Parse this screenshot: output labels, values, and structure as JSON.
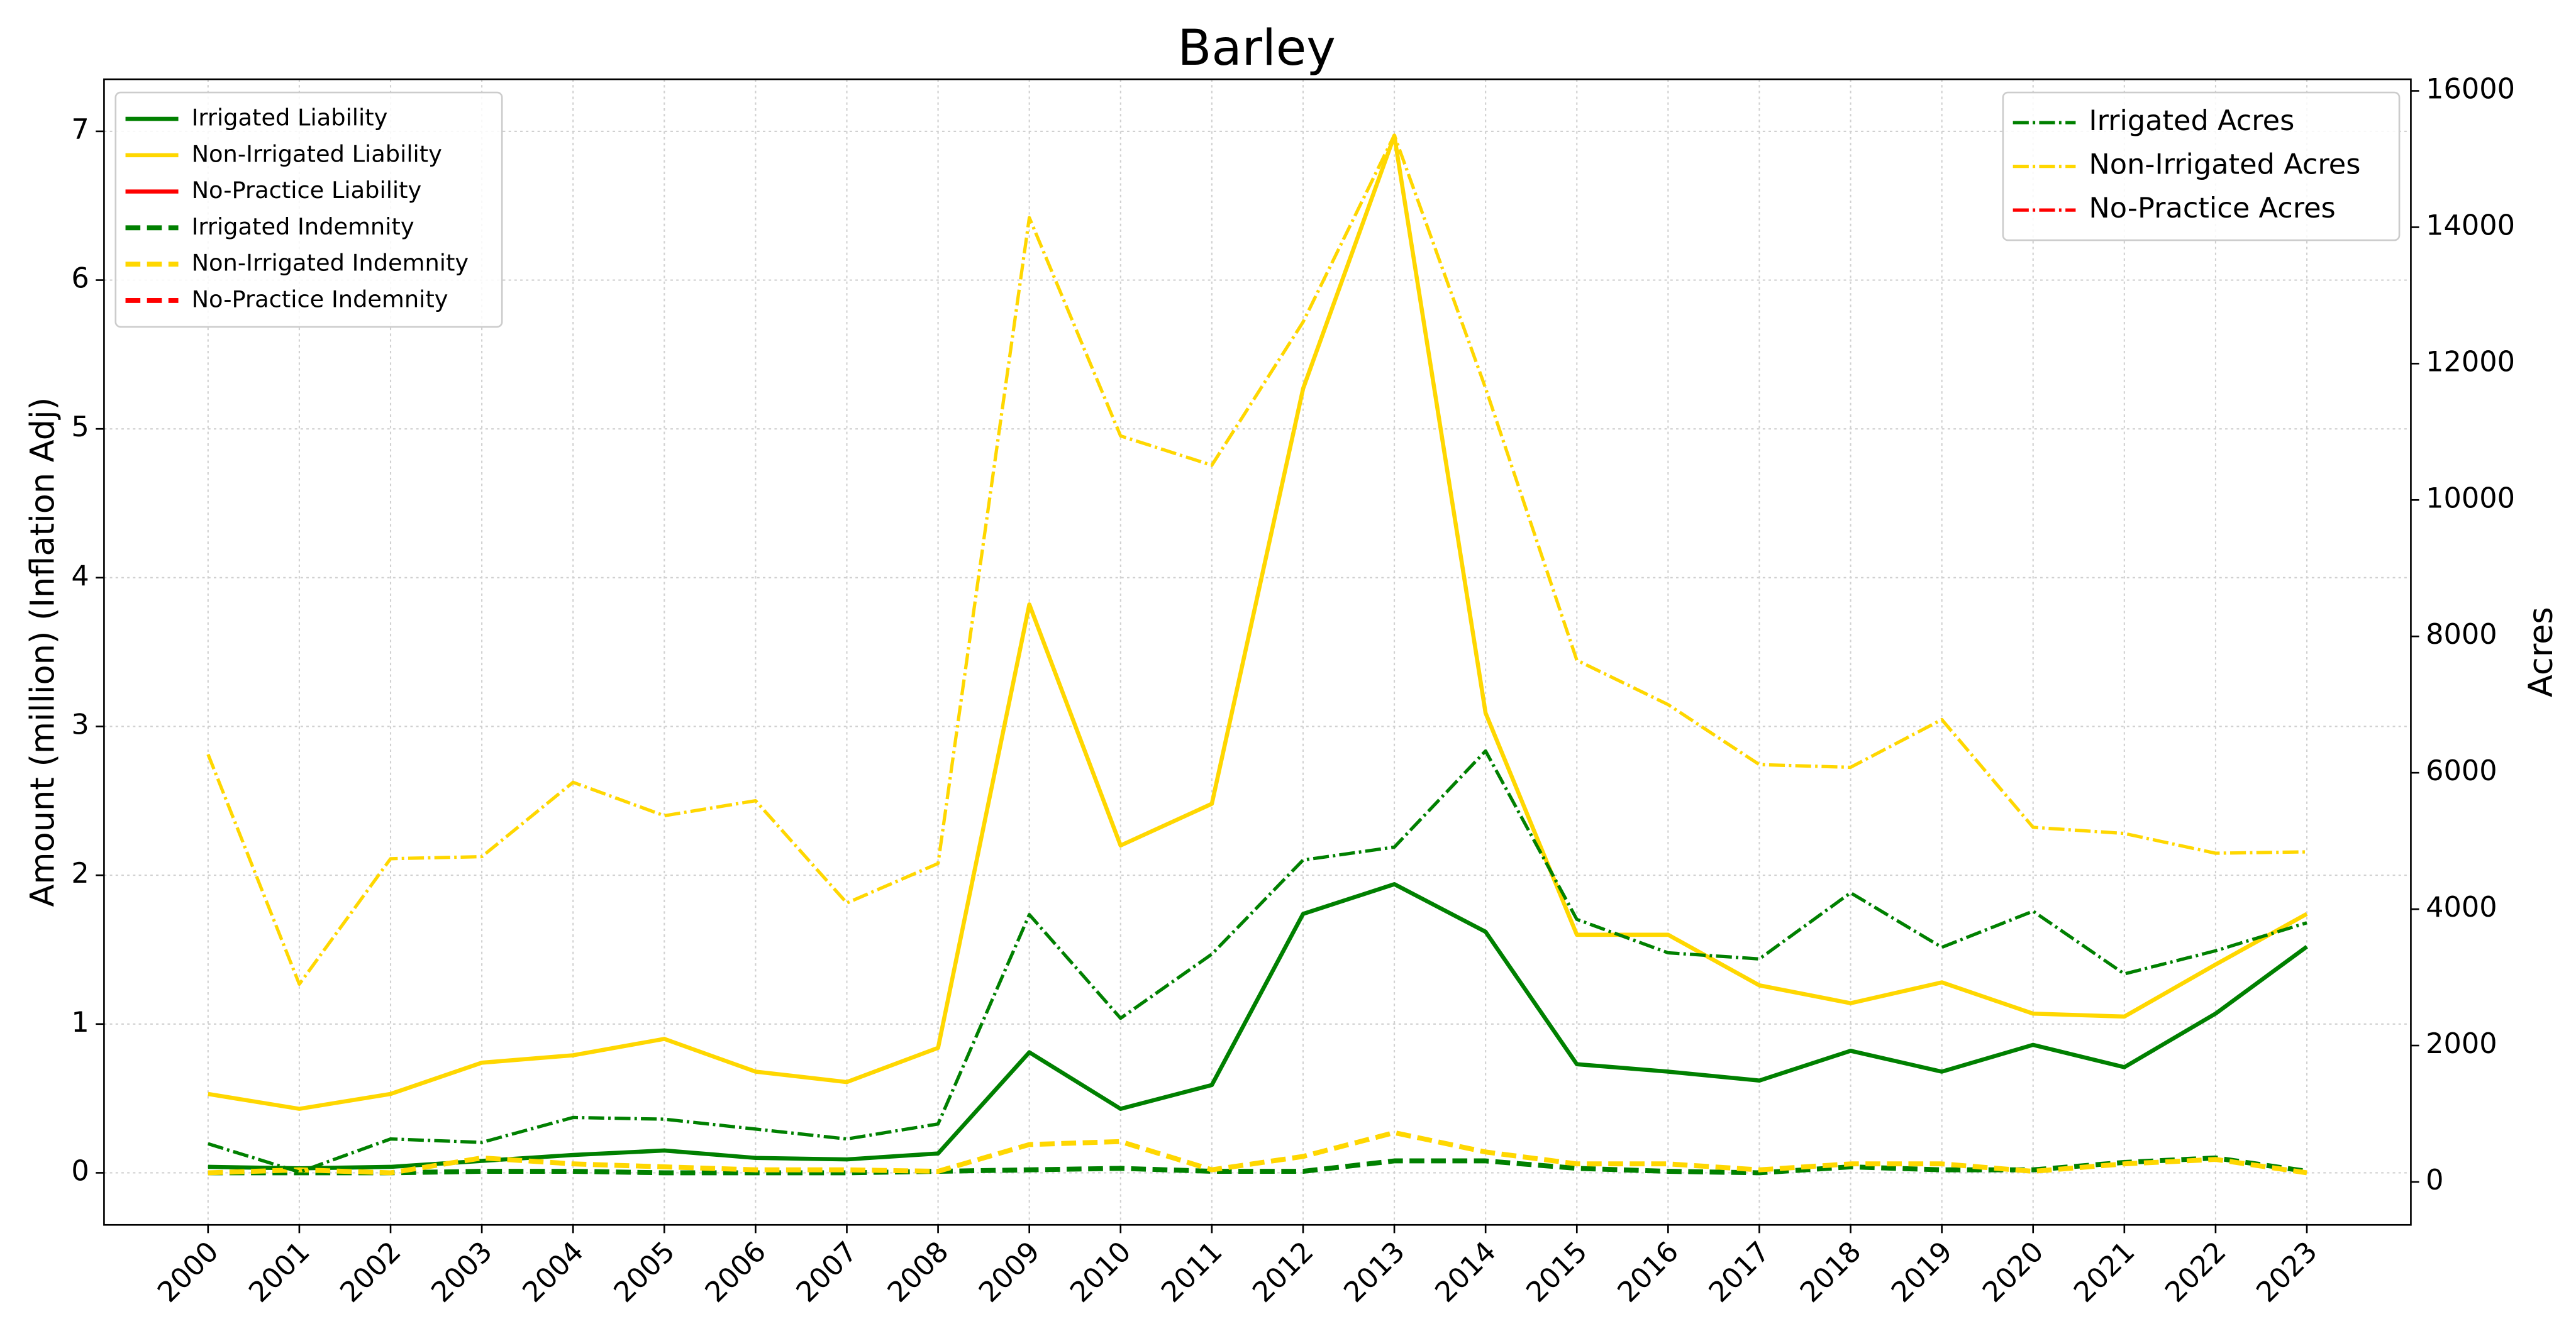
{
  "chart_data": {
    "type": "line",
    "title": "Barley",
    "ylabel": "Amount (million) (Inflation Adj)",
    "y2label": "Acres",
    "x": [
      2000,
      2001,
      2002,
      2003,
      2004,
      2005,
      2006,
      2007,
      2008,
      2009,
      2010,
      2011,
      2012,
      2013,
      2014,
      2015,
      2016,
      2017,
      2018,
      2019,
      2020,
      2021,
      2022,
      2023
    ],
    "xlim": [
      1998.86,
      2024.14
    ],
    "xticks": [
      2000,
      2001,
      2002,
      2003,
      2004,
      2005,
      2006,
      2007,
      2008,
      2009,
      2010,
      2011,
      2012,
      2013,
      2014,
      2015,
      2016,
      2017,
      2018,
      2019,
      2020,
      2021,
      2022,
      2023
    ],
    "ylim": [
      -0.35,
      7.35
    ],
    "yticks": [
      0,
      1,
      2,
      3,
      4,
      5,
      6,
      7
    ],
    "y2lim": [
      -630,
      16170
    ],
    "y2ticks": [
      0,
      2000,
      4000,
      6000,
      8000,
      10000,
      12000,
      14000,
      16000
    ],
    "grid": true,
    "legend": "upper left",
    "legend2": "upper right",
    "series": [
      {
        "name": "Irrigated Liability",
        "color": "#008000",
        "linestyle": "solid",
        "values": [
          0.04,
          0.03,
          0.04,
          0.08,
          0.12,
          0.15,
          0.1,
          0.09,
          0.13,
          0.81,
          0.43,
          0.59,
          1.74,
          1.94,
          1.62,
          0.73,
          0.68,
          0.62,
          0.82,
          0.68,
          0.86,
          0.71,
          1.07,
          1.52
        ]
      },
      {
        "name": "Non-Irrigated Liability",
        "color": "#ffd700",
        "linestyle": "solid",
        "values": [
          0.53,
          0.43,
          0.53,
          0.74,
          0.79,
          0.9,
          0.68,
          0.61,
          0.84,
          3.82,
          2.2,
          2.48,
          5.27,
          6.97,
          3.09,
          1.6,
          1.6,
          1.26,
          1.14,
          1.28,
          1.07,
          1.05,
          1.4,
          1.74
        ]
      },
      {
        "name": "No-Practice Liability",
        "color": "#ff0000",
        "linestyle": "solid",
        "values": [
          null,
          null,
          null,
          null,
          null,
          null,
          null,
          null,
          null,
          null,
          null,
          null,
          null,
          null,
          null,
          null,
          null,
          null,
          null,
          null,
          null,
          null,
          null,
          null
        ]
      },
      {
        "name": "Irrigated Indemnity",
        "color": "#008000",
        "linestyle": "dashed",
        "values": [
          0.0,
          0.0,
          0.0,
          0.01,
          0.01,
          0.0,
          0.0,
          0.0,
          0.01,
          0.02,
          0.03,
          0.01,
          0.01,
          0.08,
          0.08,
          0.03,
          0.01,
          0.0,
          0.04,
          0.02,
          0.02,
          0.07,
          0.1,
          0.01
        ]
      },
      {
        "name": "Non-Irrigated Indemnity",
        "color": "#ffd700",
        "linestyle": "dashed",
        "values": [
          0.0,
          0.02,
          0.0,
          0.1,
          0.06,
          0.04,
          0.02,
          0.02,
          0.01,
          0.19,
          0.21,
          0.02,
          0.11,
          0.27,
          0.14,
          0.06,
          0.06,
          0.02,
          0.06,
          0.06,
          0.01,
          0.06,
          0.09,
          0.0
        ]
      },
      {
        "name": "No-Practice Indemnity",
        "color": "#ff0000",
        "linestyle": "dashed",
        "values": [
          null,
          null,
          null,
          null,
          null,
          null,
          null,
          null,
          null,
          null,
          null,
          null,
          null,
          null,
          null,
          null,
          null,
          null,
          null,
          null,
          null,
          null,
          null,
          null
        ]
      },
      {
        "name": "Irrigated Acres",
        "color": "#008000",
        "linestyle": "dashdot",
        "axis": "y2",
        "values": [
          560,
          145,
          630,
          580,
          945,
          920,
          775,
          630,
          850,
          3920,
          2400,
          3340,
          4720,
          4910,
          6320,
          3850,
          3360,
          3270,
          4240,
          3440,
          3970,
          3050,
          3390,
          3800
        ]
      },
      {
        "name": "Non-Irrigated Acres",
        "color": "#ffd700",
        "linestyle": "dashdot",
        "axis": "y2",
        "values": [
          6270,
          2900,
          4740,
          4770,
          5860,
          5370,
          5590,
          4090,
          4670,
          14140,
          10940,
          10510,
          12610,
          15350,
          11640,
          7650,
          7000,
          6120,
          6080,
          6780,
          5200,
          5110,
          4820,
          4840
        ]
      },
      {
        "name": "No-Practice Acres",
        "color": "#ff0000",
        "linestyle": "dashdot",
        "axis": "y2",
        "values": [
          null,
          null,
          null,
          null,
          null,
          null,
          null,
          null,
          null,
          null,
          null,
          null,
          null,
          null,
          null,
          null,
          null,
          null,
          null,
          null,
          null,
          null,
          null,
          null
        ]
      }
    ]
  }
}
